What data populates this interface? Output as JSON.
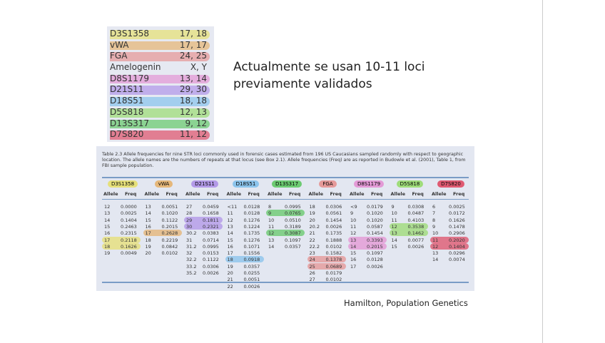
{
  "profile": [
    {
      "locus": "D3S1358",
      "value": "17, 18",
      "color": "#e6e07a"
    },
    {
      "locus": "vWA",
      "value": "17, 17",
      "color": "#e5b77a"
    },
    {
      "locus": "FGA",
      "value": "24, 25",
      "color": "#e59a9a"
    },
    {
      "locus": "Amelogenin",
      "value": "X, Y",
      "color": ""
    },
    {
      "locus": "D8S1179",
      "value": "13, 14",
      "color": "#e39ad6"
    },
    {
      "locus": "D21S11",
      "value": "29, 30",
      "color": "#b39ae8"
    },
    {
      "locus": "D18S51",
      "value": "18, 18",
      "color": "#8cc4ec"
    },
    {
      "locus": "D5S818",
      "value": "12, 13",
      "color": "#9fdc7a"
    },
    {
      "locus": "D13S317",
      "value": "9, 12",
      "color": "#6ccb72"
    },
    {
      "locus": "D7S820",
      "value": "11, 12",
      "color": "#df5a72"
    }
  ],
  "heading": [
    "Actualmente se usan 10-11 loci",
    "previamente validados"
  ],
  "table": {
    "caption": "Table 2.3  Allele frequencies for nine STR loci commonly used in forensic cases estimated from 196 US Caucasians sampled randomly with respect to geographic location. The allele names are the numbers of repeats at that locus (see Box 2.1). Allele frequencies (Freq) are as reported in Budowle et al. (2001), Table 1, from FBI sample population.",
    "col_allele": "Allele",
    "col_freq": "Freq",
    "loci": [
      {
        "name": "D3S1358",
        "color": "#e6e07a",
        "alleles": [
          "12",
          "13",
          "14",
          "15",
          "16",
          "17",
          "18",
          "19"
        ],
        "freqs": [
          "0.0000",
          "0.0025",
          "0.1404",
          "0.2463",
          "0.2315",
          "0.2118",
          "0.1626",
          "0.0049"
        ],
        "hl": [
          5,
          6
        ]
      },
      {
        "name": "vWA",
        "color": "#e5b77a",
        "alleles": [
          "13",
          "14",
          "15",
          "16",
          "17",
          "18",
          "19",
          "20"
        ],
        "freqs": [
          "0.0051",
          "0.1020",
          "0.1122",
          "0.2015",
          "0.2628",
          "0.2219",
          "0.0842",
          "0.0102"
        ],
        "hl": [
          4
        ]
      },
      {
        "name": "D21S11",
        "color": "#b39ae8",
        "alleles": [
          "27",
          "28",
          "29",
          "30",
          "30.2",
          "31",
          "31.2",
          "32",
          "32.2",
          "33.2",
          "35.2"
        ],
        "freqs": [
          "0.0459",
          "0.1658",
          "0.1811",
          "0.2321",
          "0.0383",
          "0.0714",
          "0.0995",
          "0.0153",
          "0.1122",
          "0.0306",
          "0.0026"
        ],
        "hl": [
          2,
          3
        ]
      },
      {
        "name": "D18S51",
        "color": "#8cc4ec",
        "alleles": [
          "<11",
          "11",
          "12",
          "13",
          "14",
          "15",
          "16",
          "17",
          "18",
          "19",
          "20",
          "21",
          "22"
        ],
        "freqs": [
          "0.0128",
          "0.0128",
          "0.1276",
          "0.1224",
          "0.1735",
          "0.1276",
          "0.1071",
          "0.1556",
          "0.0918",
          "0.0357",
          "0.0255",
          "0.0051",
          "0.0026"
        ],
        "hl": [
          8
        ]
      },
      {
        "name": "D13S317",
        "color": "#6ccb72",
        "alleles": [
          "8",
          "9",
          "10",
          "11",
          "12",
          "13",
          "14"
        ],
        "freqs": [
          "0.0995",
          "0.0765",
          "0.0510",
          "0.3189",
          "0.3087",
          "0.1097",
          "0.0357"
        ],
        "hl": [
          1,
          4
        ]
      },
      {
        "name": "FGA",
        "color": "#e59a9a",
        "alleles": [
          "18",
          "19",
          "20",
          "20.2",
          "21",
          "22",
          "22.2",
          "23",
          "24",
          "25",
          "26",
          "27"
        ],
        "freqs": [
          "0.0306",
          "0.0561",
          "0.1454",
          "0.0026",
          "0.1735",
          "0.1888",
          "0.0102",
          "0.1582",
          "0.1378",
          "0.0689",
          "0.0179",
          "0.0102"
        ],
        "hl": [
          8,
          9
        ]
      },
      {
        "name": "D8S1179",
        "color": "#e39ad6",
        "alleles": [
          "<9",
          "9",
          "10",
          "11",
          "12",
          "13",
          "14",
          "15",
          "16",
          "17"
        ],
        "freqs": [
          "0.0179",
          "0.1020",
          "0.1020",
          "0.0587",
          "0.1454",
          "0.3393",
          "0.2015",
          "0.1097",
          "0.0128",
          "0.0026"
        ],
        "hl": [
          5,
          6
        ]
      },
      {
        "name": "D5S818",
        "color": "#9fdc7a",
        "alleles": [
          "9",
          "10",
          "11",
          "12",
          "13",
          "14",
          "15"
        ],
        "freqs": [
          "0.0308",
          "0.0487",
          "0.4103",
          "0.3538",
          "0.1462",
          "0.0077",
          "0.0026"
        ],
        "hl": [
          3,
          4
        ]
      },
      {
        "name": "D7S820",
        "color": "#df5a72",
        "alleles": [
          "6",
          "7",
          "8",
          "9",
          "10",
          "11",
          "12",
          "13",
          "14"
        ],
        "freqs": [
          "0.0025",
          "0.0172",
          "0.1626",
          "0.1478",
          "0.2906",
          "0.2020",
          "0.1404",
          "0.0296",
          "0.0074"
        ],
        "hl": [
          5,
          6
        ]
      }
    ]
  },
  "credit": "Hamilton, Population Genetics"
}
